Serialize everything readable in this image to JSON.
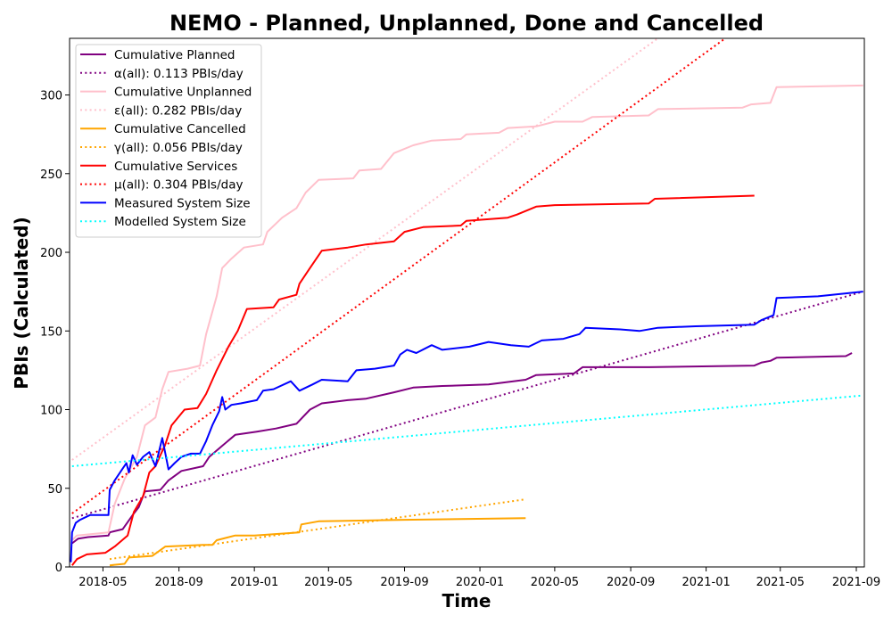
{
  "chart_data": {
    "type": "line",
    "title": "NEMO - Planned, Unplanned, Done  and Cancelled",
    "xlabel": "Time",
    "ylabel": "PBIs (Calculated)",
    "xlim": [
      "2018-03-08",
      "2021-09-14"
    ],
    "ylim": [
      0,
      336
    ],
    "x_ticks": [
      "2018-05",
      "2018-09",
      "2019-01",
      "2019-05",
      "2019-09",
      "2020-01",
      "2020-05",
      "2020-09",
      "2021-01",
      "2021-05",
      "2021-09"
    ],
    "y_ticks": [
      0,
      50,
      100,
      150,
      200,
      250,
      300
    ],
    "grid": false,
    "legend_position": "upper-left",
    "series": [
      {
        "name": "Cumulative Planned",
        "color": "#800080",
        "style": "solid",
        "points": [
          [
            "2018-03-12",
            15
          ],
          [
            "2018-03-22",
            18
          ],
          [
            "2018-04-07",
            19
          ],
          [
            "2018-05-10",
            20
          ],
          [
            "2018-05-12",
            22
          ],
          [
            "2018-06-02",
            24
          ],
          [
            "2018-06-18",
            33
          ],
          [
            "2018-06-28",
            38
          ],
          [
            "2018-07-08",
            48
          ],
          [
            "2018-08-02",
            49
          ],
          [
            "2018-08-15",
            55
          ],
          [
            "2018-09-05",
            61
          ],
          [
            "2018-10-10",
            64
          ],
          [
            "2018-10-20",
            70
          ],
          [
            "2018-11-10",
            77
          ],
          [
            "2018-12-01",
            84
          ],
          [
            "2019-01-05",
            86
          ],
          [
            "2019-02-05",
            88
          ],
          [
            "2019-03-10",
            91
          ],
          [
            "2019-04-01",
            100
          ],
          [
            "2019-04-20",
            104
          ],
          [
            "2019-06-01",
            106
          ],
          [
            "2019-07-01",
            107
          ],
          [
            "2019-08-15",
            111
          ],
          [
            "2019-09-15",
            114
          ],
          [
            "2019-11-01",
            115
          ],
          [
            "2020-01-15",
            116
          ],
          [
            "2020-03-15",
            119
          ],
          [
            "2020-04-01",
            122
          ],
          [
            "2020-06-01",
            123
          ],
          [
            "2020-06-15",
            127
          ],
          [
            "2020-10-01",
            127
          ],
          [
            "2021-03-20",
            128
          ],
          [
            "2021-04-01",
            130
          ],
          [
            "2021-04-15",
            131
          ],
          [
            "2021-04-25",
            133
          ],
          [
            "2021-08-15",
            134
          ],
          [
            "2021-08-25",
            136
          ]
        ]
      },
      {
        "name": "α(all): 0.113 PBIs/day",
        "color": "#800080",
        "style": "dotted",
        "points": [
          [
            "2018-03-12",
            31
          ],
          [
            "2021-09-12",
            175
          ]
        ]
      },
      {
        "name": "Cumulative Unplanned",
        "color": "#ffc0cb",
        "style": "solid",
        "points": [
          [
            "2018-03-12",
            17
          ],
          [
            "2018-03-20",
            20
          ],
          [
            "2018-05-10",
            22
          ],
          [
            "2018-05-20",
            40
          ],
          [
            "2018-06-05",
            56
          ],
          [
            "2018-06-25",
            70
          ],
          [
            "2018-07-08",
            90
          ],
          [
            "2018-07-25",
            95
          ],
          [
            "2018-08-05",
            113
          ],
          [
            "2018-08-15",
            124
          ],
          [
            "2018-09-15",
            126
          ],
          [
            "2018-10-05",
            128
          ],
          [
            "2018-10-15",
            148
          ],
          [
            "2018-11-01",
            172
          ],
          [
            "2018-11-10",
            190
          ],
          [
            "2018-11-25",
            196
          ],
          [
            "2018-12-15",
            203
          ],
          [
            "2019-01-15",
            205
          ],
          [
            "2019-01-22",
            213
          ],
          [
            "2019-02-15",
            222
          ],
          [
            "2019-03-10",
            228
          ],
          [
            "2019-03-25",
            238
          ],
          [
            "2019-04-15",
            246
          ],
          [
            "2019-06-10",
            247
          ],
          [
            "2019-06-20",
            252
          ],
          [
            "2019-07-25",
            253
          ],
          [
            "2019-08-15",
            263
          ],
          [
            "2019-09-15",
            268
          ],
          [
            "2019-10-15",
            271
          ],
          [
            "2019-12-01",
            272
          ],
          [
            "2019-12-10",
            275
          ],
          [
            "2020-02-01",
            276
          ],
          [
            "2020-02-15",
            279
          ],
          [
            "2020-04-01",
            280
          ],
          [
            "2020-05-01",
            283
          ],
          [
            "2020-06-15",
            283
          ],
          [
            "2020-07-01",
            286
          ],
          [
            "2020-09-30",
            287
          ],
          [
            "2020-10-15",
            291
          ],
          [
            "2021-03-01",
            292
          ],
          [
            "2021-03-15",
            294
          ],
          [
            "2021-04-15",
            295
          ],
          [
            "2021-04-25",
            305
          ],
          [
            "2021-09-12",
            306
          ]
        ]
      },
      {
        "name": "ε(all): 0.282 PBIs/day",
        "color": "#ffc0cb",
        "style": "dotted",
        "points": [
          [
            "2018-03-12",
            68
          ],
          [
            "2020-10-15",
            336
          ]
        ]
      },
      {
        "name": "Cumulative Cancelled",
        "color": "#ffa500",
        "style": "solid",
        "points": [
          [
            "2018-05-12",
            1
          ],
          [
            "2018-06-05",
            2
          ],
          [
            "2018-06-12",
            6
          ],
          [
            "2018-07-20",
            7
          ],
          [
            "2018-08-10",
            13
          ],
          [
            "2018-10-10",
            14
          ],
          [
            "2018-10-25",
            14
          ],
          [
            "2018-11-01",
            17
          ],
          [
            "2018-12-01",
            20
          ],
          [
            "2019-01-01",
            20
          ],
          [
            "2019-03-15",
            22
          ],
          [
            "2019-03-18",
            27
          ],
          [
            "2019-04-15",
            29
          ],
          [
            "2019-09-01",
            30
          ],
          [
            "2020-03-15",
            31
          ]
        ]
      },
      {
        "name": "γ(all): 0.056 PBIs/day",
        "color": "#ffa500",
        "style": "dotted",
        "points": [
          [
            "2018-05-12",
            5
          ],
          [
            "2020-03-15",
            43
          ]
        ]
      },
      {
        "name": "Cumulative Services",
        "color": "#ff0000",
        "style": "solid",
        "points": [
          [
            "2018-03-12",
            1
          ],
          [
            "2018-03-20",
            5
          ],
          [
            "2018-04-05",
            8
          ],
          [
            "2018-05-05",
            9
          ],
          [
            "2018-05-20",
            13
          ],
          [
            "2018-06-10",
            20
          ],
          [
            "2018-06-20",
            35
          ],
          [
            "2018-07-05",
            45
          ],
          [
            "2018-07-15",
            60
          ],
          [
            "2018-07-25",
            64
          ],
          [
            "2018-08-10",
            78
          ],
          [
            "2018-08-20",
            90
          ],
          [
            "2018-09-10",
            100
          ],
          [
            "2018-10-01",
            101
          ],
          [
            "2018-10-15",
            110
          ],
          [
            "2018-11-01",
            125
          ],
          [
            "2018-11-20",
            140
          ],
          [
            "2018-12-05",
            150
          ],
          [
            "2018-12-20",
            164
          ],
          [
            "2019-02-01",
            165
          ],
          [
            "2019-02-10",
            170
          ],
          [
            "2019-03-10",
            173
          ],
          [
            "2019-03-15",
            180
          ],
          [
            "2019-04-01",
            190
          ],
          [
            "2019-04-20",
            201
          ],
          [
            "2019-06-01",
            203
          ],
          [
            "2019-07-01",
            205
          ],
          [
            "2019-08-15",
            207
          ],
          [
            "2019-09-01",
            213
          ],
          [
            "2019-10-01",
            216
          ],
          [
            "2019-12-01",
            217
          ],
          [
            "2019-12-10",
            220
          ],
          [
            "2020-02-15",
            222
          ],
          [
            "2020-03-01",
            224
          ],
          [
            "2020-04-01",
            229
          ],
          [
            "2020-05-01",
            230
          ],
          [
            "2020-09-30",
            231
          ],
          [
            "2020-10-10",
            234
          ],
          [
            "2021-03-20",
            236
          ]
        ]
      },
      {
        "name": "μ(all): 0.304 PBIs/day",
        "color": "#ff0000",
        "style": "dotted",
        "points": [
          [
            "2018-03-12",
            34
          ],
          [
            "2021-02-01",
            336
          ]
        ]
      },
      {
        "name": "Measured System Size",
        "color": "#0000ff",
        "style": "solid",
        "points": [
          [
            "2018-03-10",
            3
          ],
          [
            "2018-03-12",
            22
          ],
          [
            "2018-03-18",
            28
          ],
          [
            "2018-03-25",
            30
          ],
          [
            "2018-04-10",
            33
          ],
          [
            "2018-05-10",
            33
          ],
          [
            "2018-05-12",
            49
          ],
          [
            "2018-05-20",
            55
          ],
          [
            "2018-06-01",
            62
          ],
          [
            "2018-06-08",
            66
          ],
          [
            "2018-06-12",
            60
          ],
          [
            "2018-06-18",
            71
          ],
          [
            "2018-06-25",
            65
          ],
          [
            "2018-07-05",
            70
          ],
          [
            "2018-07-15",
            73
          ],
          [
            "2018-07-25",
            64
          ],
          [
            "2018-08-05",
            82
          ],
          [
            "2018-08-15",
            62
          ],
          [
            "2018-08-25",
            66
          ],
          [
            "2018-09-05",
            70
          ],
          [
            "2018-09-20",
            72
          ],
          [
            "2018-10-05",
            72
          ],
          [
            "2018-10-15",
            80
          ],
          [
            "2018-10-25",
            90
          ],
          [
            "2018-11-05",
            99
          ],
          [
            "2018-11-10",
            108
          ],
          [
            "2018-11-15",
            100
          ],
          [
            "2018-11-25",
            103
          ],
          [
            "2018-12-10",
            104
          ],
          [
            "2019-01-05",
            106
          ],
          [
            "2019-01-15",
            112
          ],
          [
            "2019-02-01",
            113
          ],
          [
            "2019-03-01",
            118
          ],
          [
            "2019-03-15",
            112
          ],
          [
            "2019-04-05",
            116
          ],
          [
            "2019-04-20",
            119
          ],
          [
            "2019-06-01",
            118
          ],
          [
            "2019-06-15",
            125
          ],
          [
            "2019-07-15",
            126
          ],
          [
            "2019-08-15",
            128
          ],
          [
            "2019-08-25",
            135
          ],
          [
            "2019-09-05",
            138
          ],
          [
            "2019-09-20",
            136
          ],
          [
            "2019-10-15",
            141
          ],
          [
            "2019-11-01",
            138
          ],
          [
            "2019-12-15",
            140
          ],
          [
            "2020-01-15",
            143
          ],
          [
            "2020-02-20",
            141
          ],
          [
            "2020-03-20",
            140
          ],
          [
            "2020-04-10",
            144
          ],
          [
            "2020-05-15",
            145
          ],
          [
            "2020-06-10",
            148
          ],
          [
            "2020-06-20",
            152
          ],
          [
            "2020-08-15",
            151
          ],
          [
            "2020-09-15",
            150
          ],
          [
            "2020-10-15",
            152
          ],
          [
            "2020-12-15",
            153
          ],
          [
            "2021-03-20",
            154
          ],
          [
            "2021-04-01",
            157
          ],
          [
            "2021-04-20",
            160
          ],
          [
            "2021-04-25",
            171
          ],
          [
            "2021-07-01",
            172
          ],
          [
            "2021-09-12",
            175
          ]
        ]
      },
      {
        "name": "Modelled System Size",
        "color": "#00ffff",
        "style": "dotted",
        "points": [
          [
            "2018-03-12",
            64
          ],
          [
            "2021-09-12",
            109
          ]
        ]
      }
    ]
  }
}
